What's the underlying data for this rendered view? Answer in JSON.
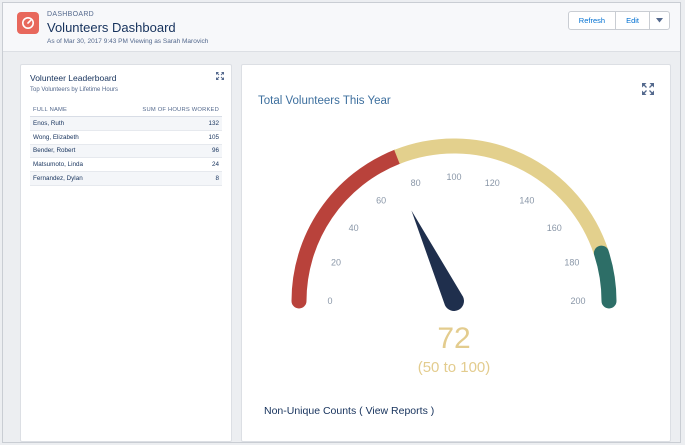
{
  "header": {
    "kicker": "DASHBOARD",
    "title": "Volunteers Dashboard",
    "subtitle": "As of Mar 30, 2017 9:43 PM Viewing as Sarah Marovich",
    "buttons": {
      "refresh": "Refresh",
      "edit": "Edit"
    }
  },
  "leaderboard": {
    "title": "Volunteer Leaderboard",
    "subtitle": "Top Volunteers by Lifetime Hours",
    "columns": {
      "name": "FULL NAME",
      "hours": "SUM OF HOURS WORKED"
    },
    "rows": [
      {
        "name": "Enos, Ruth",
        "hours": "132"
      },
      {
        "name": "Wong, Elizabeth",
        "hours": "105"
      },
      {
        "name": "Bender, Robert",
        "hours": "96"
      },
      {
        "name": "Matsumoto, Linda",
        "hours": "24"
      },
      {
        "name": "Fernandez, Dylan",
        "hours": "8"
      }
    ]
  },
  "gauge": {
    "title": "Total Volunteers This Year",
    "footer_text": "Non-Unique Counts",
    "footer_link_open": "( ",
    "footer_link": "View Reports",
    "footer_link_close": " )"
  },
  "chart_data": {
    "type": "gauge",
    "title": "Total Volunteers This Year",
    "min": 0,
    "max": 200,
    "value": 72,
    "value_label": "72",
    "range_label": "(50 to 100)",
    "ticks": [
      "0",
      "20",
      "40",
      "60",
      "80",
      "100",
      "120",
      "140",
      "160",
      "180",
      "200"
    ],
    "bands": [
      {
        "from": 0,
        "to": 76,
        "color": "#b9423b"
      },
      {
        "from": 76,
        "to": 180,
        "color": "#e3d08d"
      },
      {
        "from": 180,
        "to": 200,
        "color": "#2d6e67"
      }
    ],
    "needle_color": "#1f2f4d",
    "value_color": "#e3cc8e"
  }
}
